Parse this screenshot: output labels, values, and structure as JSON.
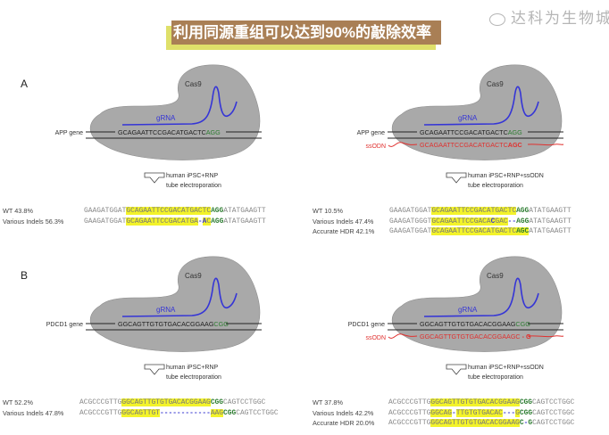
{
  "title": "利用同源重组可以达到90%的敲除效率",
  "watermark": "达科为生物城",
  "colors": {
    "title_bg": "#a97f55",
    "title_shadow": "#dfe06a",
    "cas9": "#a9a9a9",
    "grna": "#3535d6",
    "ssodn": "#e0312f",
    "pam": "#2e7d32",
    "highlight": "#f3f32a"
  },
  "panels": [
    {
      "letter": "A",
      "gene_label": "APP gene",
      "gene_seq": "GCAGAATTCCGACATGACTC",
      "gene_pam": "AGG",
      "cas9": "Cas9",
      "grna": "gRNA",
      "ssodn": null,
      "condition": [
        "human iPSC+RNP",
        "tube electroporation"
      ],
      "rows": [
        {
          "label": "WT 43.8%",
          "segs": [
            [
              "p",
              "GAAGATGGAT"
            ],
            [
              "h",
              "GCAGAATTCCGACATGACTC"
            ],
            [
              "g",
              "AGG"
            ],
            [
              "p",
              "ATATGAAGTT"
            ]
          ]
        },
        {
          "label": "Various Indels 56.3%",
          "segs": [
            [
              "p",
              "GAAGATGGAT"
            ],
            [
              "h",
              "GCAGAATTCCGACATGA"
            ],
            [
              "b",
              "-"
            ],
            [
              "bh",
              "A"
            ],
            [
              "h",
              "C"
            ],
            [
              "g",
              "AGG"
            ],
            [
              "p",
              "ATATGAAGTT"
            ]
          ]
        }
      ]
    },
    {
      "letter": "",
      "gene_label": "APP gene",
      "gene_seq": "GCAGAATTCCGACATGACTC",
      "gene_pam": "AGG",
      "cas9": "Cas9",
      "grna": "gRNA",
      "ssodn": {
        "label": "ssODN",
        "seq": "GCAGAATTCCGACATGACTC",
        "pam": "AGC"
      },
      "condition": [
        "human iPSC+RNP+ssODN",
        "tube electroporation"
      ],
      "rows": [
        {
          "label": "WT 10.5%",
          "segs": [
            [
              "p",
              "GAAGATGGAT"
            ],
            [
              "h",
              "GCAGAATTCCGACATGACTC"
            ],
            [
              "g",
              "AGG"
            ],
            [
              "p",
              "ATATGAAGTT"
            ]
          ]
        },
        {
          "label": "Various Indels 47.4%",
          "segs": [
            [
              "p",
              "GAAGATGGGT"
            ],
            [
              "h",
              "GCAGAATTCCGACA"
            ],
            [
              "bh",
              "C"
            ],
            [
              "h",
              "GAC"
            ],
            [
              "b",
              "--"
            ],
            [
              "g",
              "AGG"
            ],
            [
              "p",
              "ATATGAAGTT"
            ]
          ]
        },
        {
          "label": "Accurate HDR 42.1%",
          "segs": [
            [
              "p",
              "GAAGATGGAT"
            ],
            [
              "h",
              "GCAGAATTCCGACATGACTC"
            ],
            [
              "gh",
              "AGC"
            ],
            [
              "p",
              "ATATGAAGTT"
            ]
          ]
        }
      ]
    },
    {
      "letter": "B",
      "gene_label": "PDCD1 gene",
      "gene_seq": "GGCAGTTGTGTGACACGGAAG",
      "gene_pam": "CGG",
      "cas9": "Cas9",
      "grna": "gRNA",
      "ssodn": null,
      "condition": [
        "human iPSC+RNP",
        "tube electroporation"
      ],
      "rows": [
        {
          "label": "WT 52.2%",
          "segs": [
            [
              "p",
              "ACGCCCGTTG"
            ],
            [
              "h",
              "GGCAGTTGTGTGACACGGAAG"
            ],
            [
              "g",
              "CGG"
            ],
            [
              "p",
              "CAGTCCTGGC"
            ]
          ]
        },
        {
          "label": "Various Indels 47.8%",
          "segs": [
            [
              "p",
              "ACGCCCGTTG"
            ],
            [
              "h",
              "GGCAGTTGT"
            ],
            [
              "b",
              "------------"
            ],
            [
              "h",
              "AAG"
            ],
            [
              "g",
              "CGG"
            ],
            [
              "p",
              "CAGTCCTGGC"
            ]
          ]
        }
      ]
    },
    {
      "letter": "",
      "gene_label": "PDCD1 gene",
      "gene_seq": "GGCAGTTGTGTGACACGGAAG",
      "gene_pam": "CGG",
      "cas9": "Cas9",
      "grna": "gRNA",
      "ssodn": {
        "label": "ssODN",
        "seq": "GGCAGTTGTGTGACACGGAAGC",
        "pam": " - G"
      },
      "condition": [
        "human iPSC+RNP+ssODN",
        "tube electroporation"
      ],
      "rows": [
        {
          "label": "WT 37.8%",
          "segs": [
            [
              "p",
              "ACGCCCGTTG"
            ],
            [
              "h",
              "GGCAGTTGTGTGACACGGAAG"
            ],
            [
              "g",
              "CGG"
            ],
            [
              "p",
              "CAGTCCTGGC"
            ]
          ]
        },
        {
          "label": "Various Indels 42.2%",
          "segs": [
            [
              "p",
              "ACGCCCGTTG"
            ],
            [
              "h",
              "GGCAG"
            ],
            [
              "b",
              "-"
            ],
            [
              "h",
              "TTGTGTGACAC"
            ],
            [
              "b",
              "---"
            ],
            [
              "h",
              "G"
            ],
            [
              "g",
              "CGG"
            ],
            [
              "p",
              "CAGTCCTGGC"
            ]
          ]
        },
        {
          "label": "Accurate HDR 20.0%",
          "segs": [
            [
              "p",
              "ACGCCCGTTG"
            ],
            [
              "h",
              "GGCAGTTGTGTGACACGGAAG"
            ],
            [
              "g",
              "C"
            ],
            [
              "b",
              "-"
            ],
            [
              "g",
              "G"
            ],
            [
              "p",
              "CAGTCCTGGC"
            ]
          ]
        }
      ]
    }
  ]
}
